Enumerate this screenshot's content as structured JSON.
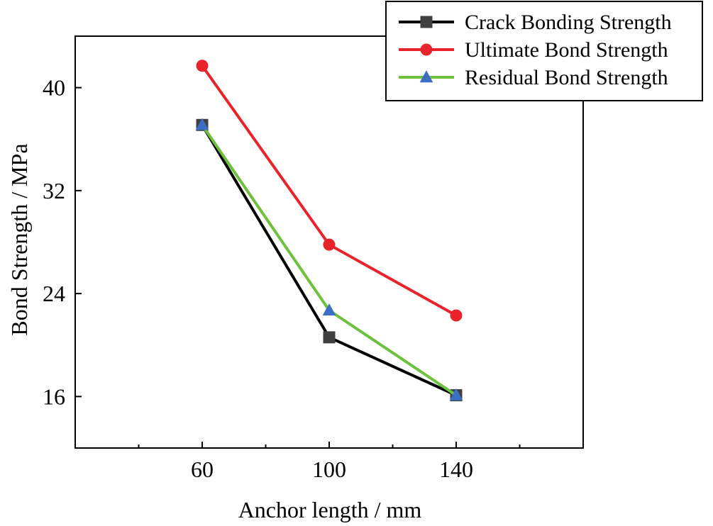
{
  "chart_data": {
    "type": "line",
    "title": "",
    "xlabel": "Anchor length / mm",
    "ylabel": "Bond Strength / MPa",
    "x": [
      60,
      100,
      140
    ],
    "xlim": [
      20,
      180
    ],
    "ylim": [
      12,
      44
    ],
    "xticks": [
      60,
      100,
      140
    ],
    "xminorticks": [
      40,
      80,
      120,
      160
    ],
    "yticks": [
      16,
      24,
      32,
      40
    ],
    "grid": false,
    "legend_position": "top-right",
    "series": [
      {
        "name": "Crack Bonding Strength",
        "values": [
          37.1,
          20.6,
          16.1
        ],
        "color": "#000000",
        "marker": "square",
        "marker_color": "#404040"
      },
      {
        "name": "Ultimate Bond Strength",
        "values": [
          41.7,
          27.8,
          22.3
        ],
        "color": "#e8232a",
        "marker": "circle",
        "marker_color": "#e8232a"
      },
      {
        "name": "Residual Bond Strength",
        "values": [
          37.1,
          22.7,
          16.1
        ],
        "color": "#6ec13c",
        "marker": "triangle",
        "marker_color": "#3a6fc4"
      }
    ]
  }
}
